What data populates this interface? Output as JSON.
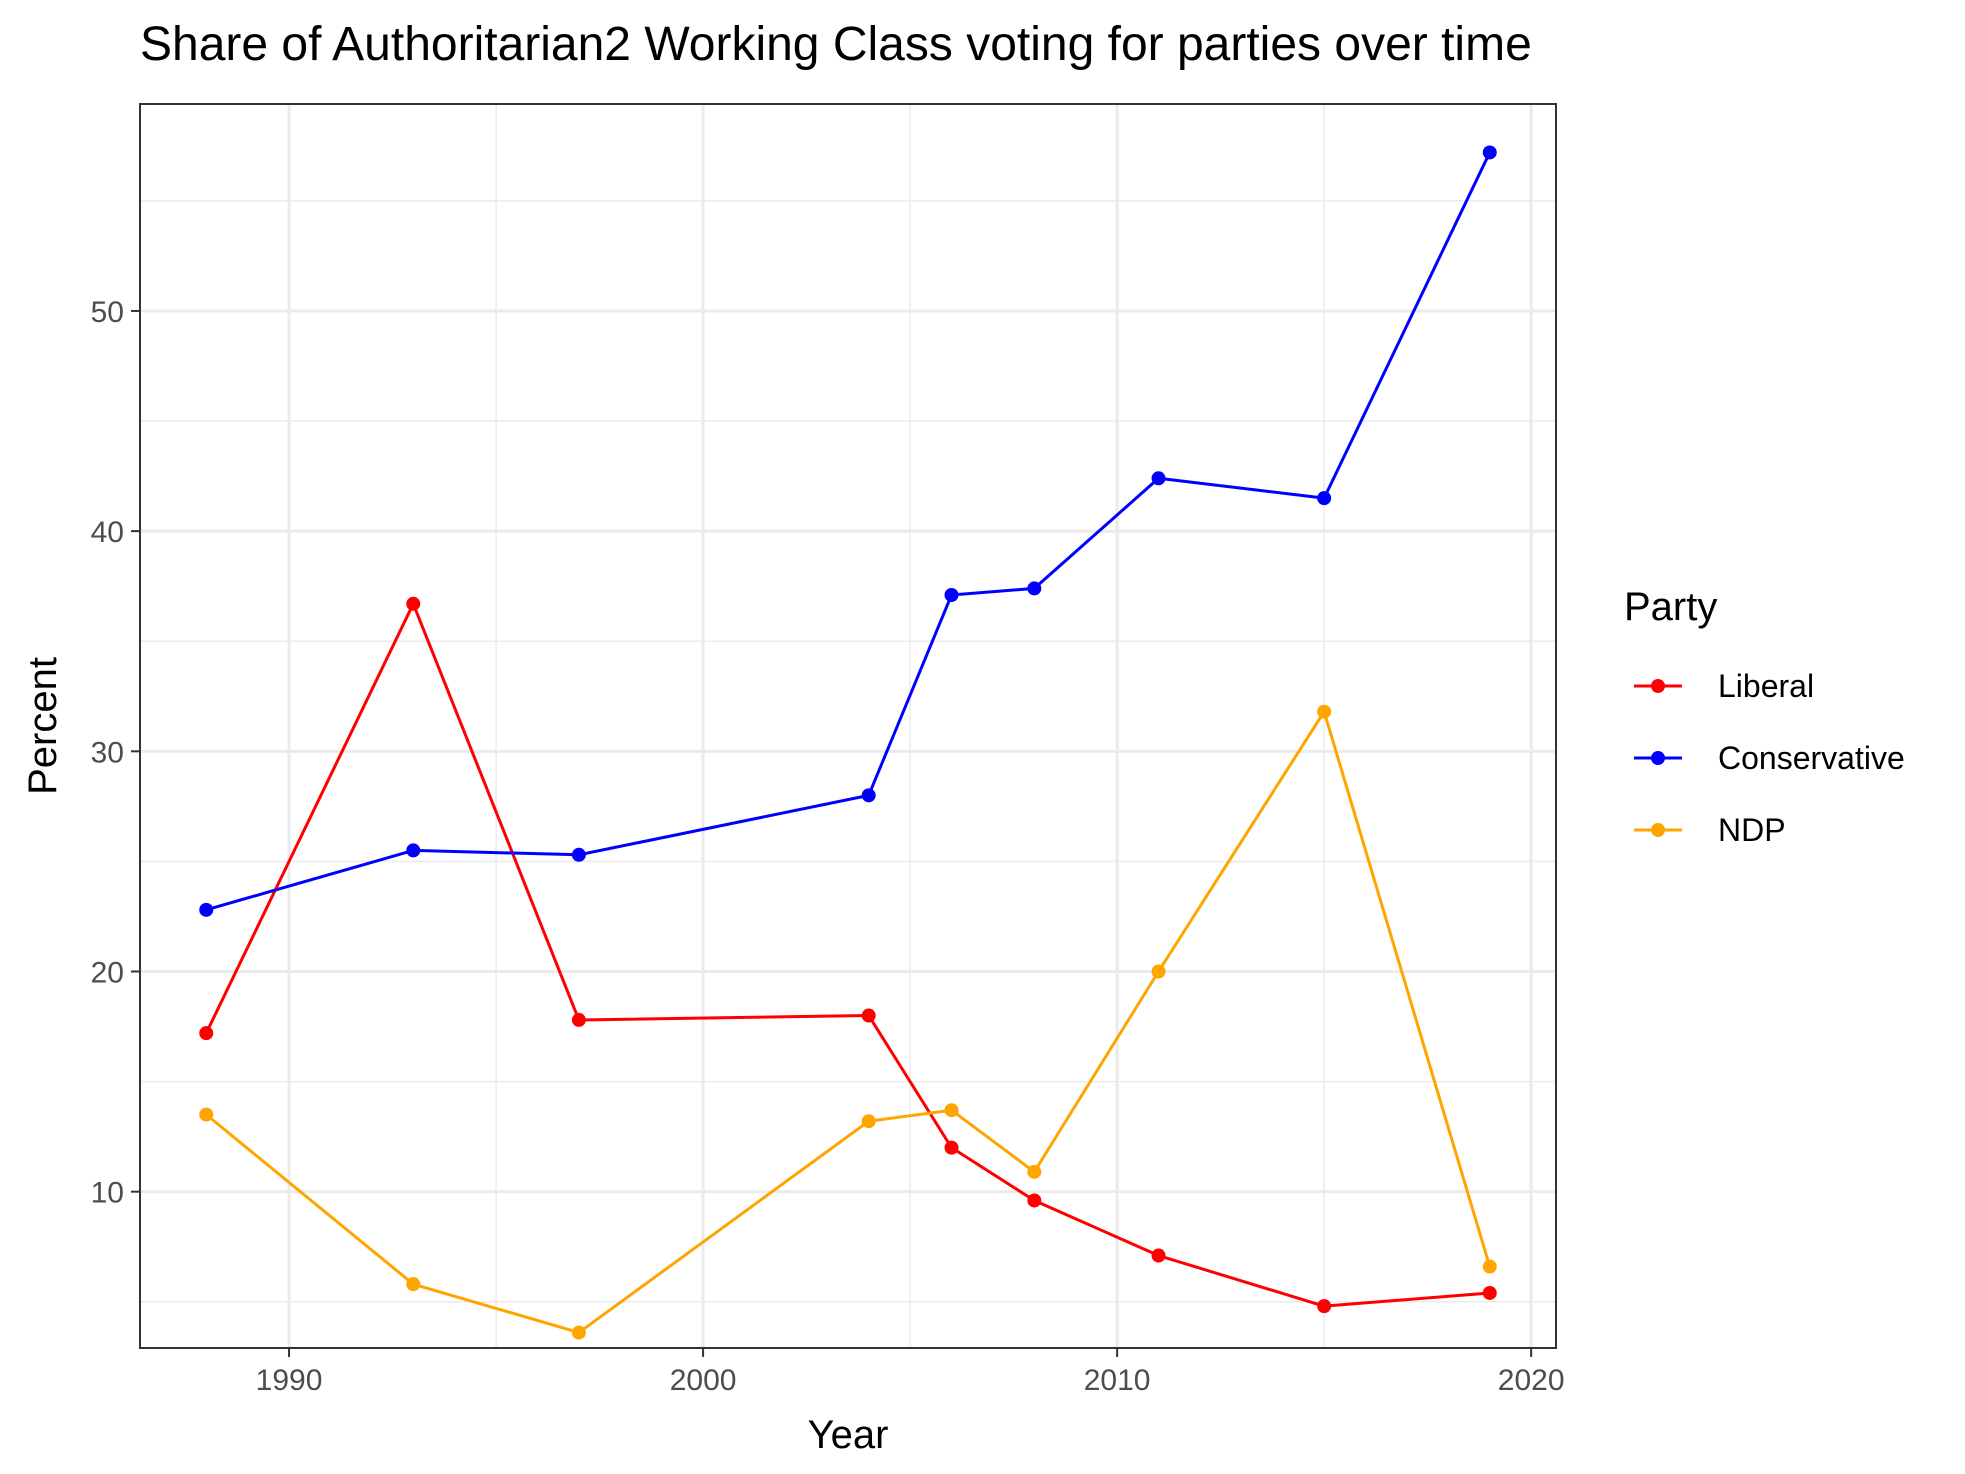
{
  "chart_data": {
    "type": "line",
    "title": "Share of Authoritarian2 Working Class voting for parties over time",
    "xlabel": "Year",
    "ylabel": "Percent",
    "xlim": [
      1986.4,
      2020.6
    ],
    "ylim": [
      2.9,
      59.4
    ],
    "x_ticks": [
      1990,
      2000,
      2010,
      2020
    ],
    "y_ticks": [
      10,
      20,
      30,
      40,
      50
    ],
    "grid": true,
    "legend": {
      "title": "Party",
      "placement": "right"
    },
    "x": [
      1988,
      1993,
      1997,
      2004,
      2006,
      2008,
      2011,
      2015,
      2019
    ],
    "series": [
      {
        "name": "Liberal",
        "color": "#ff0000",
        "values": [
          17.2,
          36.7,
          17.8,
          18.0,
          12.0,
          9.6,
          7.1,
          4.8,
          5.4
        ]
      },
      {
        "name": "Conservative",
        "color": "#0000ff",
        "values": [
          22.8,
          25.5,
          25.3,
          28.0,
          37.1,
          37.4,
          42.4,
          41.5,
          57.2
        ]
      },
      {
        "name": "NDP",
        "color": "#ffa500",
        "values": [
          13.5,
          5.8,
          3.6,
          13.2,
          13.7,
          10.9,
          20.0,
          31.8,
          6.6
        ]
      }
    ]
  }
}
